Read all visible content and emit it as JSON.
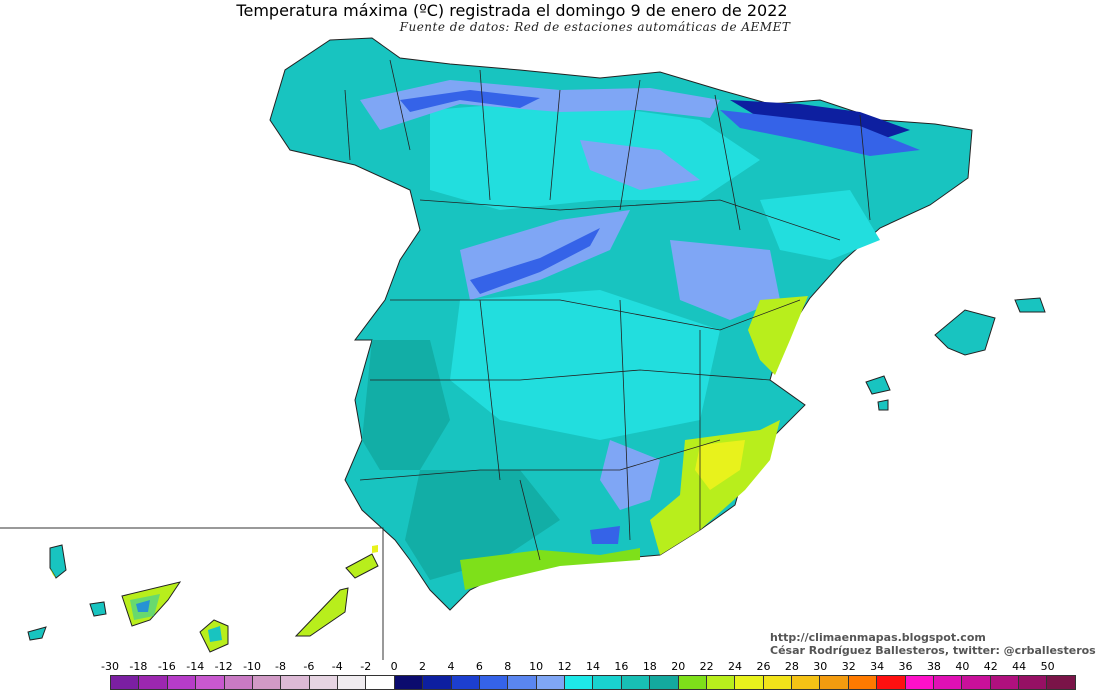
{
  "header": {
    "title": "Temperatura máxima (ºC) registrada el domingo 9 de enero de 2022",
    "subtitle": "Fuente de datos: Red de estaciones automáticas de AEMET"
  },
  "credits": {
    "blog": "http://climaenmapas.blogspot.com",
    "author": "César Rodríguez Ballesteros, twitter: @crballesteros"
  },
  "legend": {
    "labels": [
      "-30",
      "-18",
      "-16",
      "-14",
      "-12",
      "-10",
      "-8",
      "-6",
      "-4",
      "-2",
      "0",
      "2",
      "4",
      "6",
      "8",
      "10",
      "12",
      "14",
      "16",
      "18",
      "20",
      "22",
      "24",
      "26",
      "28",
      "30",
      "32",
      "34",
      "36",
      "38",
      "40",
      "42",
      "44",
      "50"
    ],
    "colors": [
      "#7b1fa2",
      "#9c27b0",
      "#b63cc8",
      "#c858cf",
      "#c97ac4",
      "#d19ac6",
      "#ddbad6",
      "#e6d4e2",
      "#f0ecf0",
      "#ffffff",
      "#0b0b6e",
      "#0d1fa0",
      "#1c3fd0",
      "#3563e8",
      "#5a86f0",
      "#7fa6f5",
      "#1ee8e8",
      "#19d2cf",
      "#18bfb4",
      "#14a99e",
      "#7ee01a",
      "#b8ee1c",
      "#e8f21c",
      "#f2e31a",
      "#f5c215",
      "#f39b0f",
      "#ff7a00",
      "#ff1010",
      "#ff10c8",
      "#e010b4",
      "#c8109a",
      "#b0107e",
      "#961064",
      "#7a1448"
    ]
  },
  "map": {
    "region": "Península Ibérica, Baleares y Canarias",
    "colors": {
      "base": "#18c4c0",
      "light": "#22dede",
      "dark": "#12aea6",
      "cold": "#7fa6f5",
      "colder": "#3563e8",
      "coldest": "#0d1fa0",
      "warm": "#b8ee1c",
      "warmer": "#e8f21c",
      "green": "#7ee01a",
      "border": "#333333"
    }
  }
}
